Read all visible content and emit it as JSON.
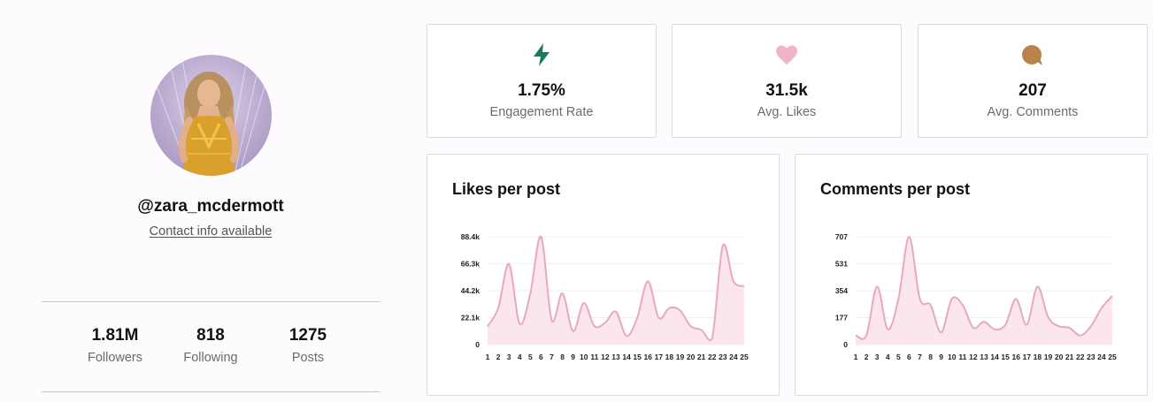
{
  "profile": {
    "handle": "@zara_mcdermott",
    "contact_link": "Contact info available",
    "stats": [
      {
        "value": "1.81M",
        "label": "Followers"
      },
      {
        "value": "818",
        "label": "Following"
      },
      {
        "value": "1275",
        "label": "Posts"
      }
    ]
  },
  "metrics": [
    {
      "icon": "lightning-icon",
      "color": "#1b7a5c",
      "value": "1.75%",
      "label": "Engagement Rate"
    },
    {
      "icon": "heart-icon",
      "color": "#f1b4c6",
      "value": "31.5k",
      "label": "Avg. Likes"
    },
    {
      "icon": "comment-icon",
      "color": "#b8844c",
      "value": "207",
      "label": "Avg. Comments"
    }
  ],
  "chart_data": [
    {
      "type": "area",
      "title": "Likes per post",
      "x": [
        1,
        2,
        3,
        4,
        5,
        6,
        7,
        8,
        9,
        10,
        11,
        12,
        13,
        14,
        15,
        16,
        17,
        18,
        19,
        20,
        21,
        22,
        23,
        24,
        25
      ],
      "values": [
        15000,
        30000,
        66000,
        17000,
        42000,
        88400,
        20000,
        42000,
        11000,
        34000,
        15000,
        18000,
        27000,
        7000,
        22000,
        52000,
        22000,
        30000,
        28000,
        15000,
        12000,
        5000,
        81000,
        52000,
        48000
      ],
      "yticks": [
        "0",
        "22.1k",
        "44.2k",
        "66.3k",
        "88.4k"
      ],
      "ylim": [
        0,
        88400
      ],
      "line_color": "#e8a9bb",
      "fill_color": "#fbe6ec"
    },
    {
      "type": "area",
      "title": "Comments per post",
      "x": [
        1,
        2,
        3,
        4,
        5,
        6,
        7,
        8,
        9,
        10,
        11,
        12,
        13,
        14,
        15,
        16,
        17,
        18,
        19,
        20,
        21,
        22,
        23,
        24,
        25
      ],
      "values": [
        60,
        60,
        380,
        100,
        300,
        707,
        300,
        260,
        80,
        300,
        260,
        110,
        150,
        100,
        130,
        300,
        130,
        380,
        180,
        120,
        110,
        60,
        120,
        240,
        320
      ],
      "yticks": [
        "0",
        "177",
        "354",
        "531",
        "707"
      ],
      "ylim": [
        0,
        707
      ],
      "line_color": "#e8a9bb",
      "fill_color": "#fbe6ec"
    }
  ]
}
